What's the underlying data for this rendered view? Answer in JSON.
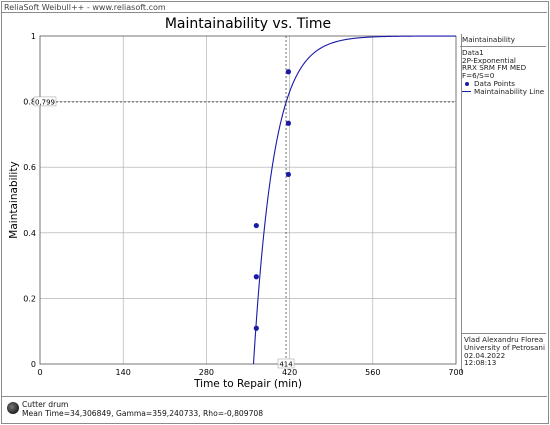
{
  "header": {
    "text": "ReliaSoft Weibull++ - www.reliasoft.com"
  },
  "legend": {
    "title": "Maintainability",
    "lines": [
      "Data1",
      "2P-Exponential",
      "RRX SRM FM MED",
      "F=6/S=0"
    ],
    "points_label": "Data Points",
    "line_label": "Maintainability Line"
  },
  "author": {
    "name": "Vlad Alexandru Florea",
    "org": "University of Petrosani",
    "date": "02.04.2022",
    "time": "12:08:13"
  },
  "footer": {
    "name": "Cutter drum",
    "params": "Mean Time=34,306849, Gamma=359,240733, Rho=-0,809708"
  },
  "colors": {
    "series": "#1a1aa8",
    "grid": "#a9a9a9",
    "marker": "#444444"
  },
  "chart_data": {
    "type": "scatter",
    "title": "Maintainability vs. Time",
    "xlabel": "Time to Repair (min)",
    "ylabel": "Maintainability",
    "xlim": [
      0,
      700
    ],
    "ylim": [
      0,
      1
    ],
    "xticks": [
      "0",
      "140",
      "280",
      "420",
      "560",
      "700"
    ],
    "yticks": [
      "0",
      "0.2",
      "0.4",
      "0.6",
      "0.8",
      "1"
    ],
    "grid": true,
    "legend_position": "right",
    "series": [
      {
        "name": "Data Points",
        "kind": "points",
        "x": [
          364,
          364,
          364,
          418,
          418,
          418
        ],
        "y": [
          0.109,
          0.266,
          0.422,
          0.578,
          0.734,
          0.891
        ]
      },
      {
        "name": "Maintainability Line",
        "kind": "line",
        "model": "2P-Exponential",
        "mean_time": 34.306849,
        "gamma": 359.240733,
        "x_start": 359.24,
        "x_end": 700
      }
    ],
    "marker": {
      "x": 414,
      "y": 0.799,
      "x_label": "414",
      "y_label": "0,799"
    }
  }
}
